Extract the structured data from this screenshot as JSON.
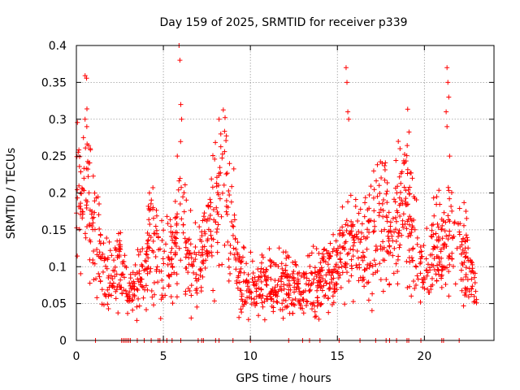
{
  "chart_data": {
    "type": "scatter",
    "title": "Day 159 of 2025, SRMTID for receiver p339",
    "xlabel": "GPS time / hours",
    "ylabel": "SRMTID / TECUs",
    "xlim": [
      0,
      24
    ],
    "ylim": [
      0,
      0.4
    ],
    "x_ticks": [
      0,
      5,
      10,
      15,
      20
    ],
    "x_tick_labels": [
      "0",
      "5",
      "10",
      "15",
      "20"
    ],
    "y_ticks": [
      0,
      0.05,
      0.1,
      0.15,
      0.2,
      0.25,
      0.3,
      0.35,
      0.4
    ],
    "y_tick_labels": [
      "0",
      "0.05",
      "0.1",
      "0.15",
      "0.2",
      "0.25",
      "0.3",
      "0.35",
      "0.4"
    ],
    "grid": true,
    "marker": "+",
    "color": "#ff0000",
    "trend": {
      "x": [
        0,
        0.3,
        0.5,
        0.7,
        1.0,
        1.5,
        2.0,
        2.5,
        3.0,
        3.5,
        4.0,
        4.3,
        4.8,
        5.3,
        5.7,
        6.0,
        6.3,
        6.7,
        7.0,
        7.5,
        8.0,
        8.5,
        9.0,
        9.3,
        9.7,
        10.0,
        10.5,
        11.0,
        11.5,
        12.0,
        12.5,
        13.0,
        13.5,
        14.0,
        14.5,
        15.0,
        15.5,
        16.0,
        16.5,
        17.0,
        17.5,
        18.0,
        18.5,
        19.0,
        19.5,
        20.0,
        20.5,
        21.0,
        21.5,
        22.0,
        22.5,
        23.0
      ],
      "y": [
        0.2,
        0.17,
        0.24,
        0.22,
        0.14,
        0.11,
        0.08,
        0.1,
        0.07,
        0.08,
        0.09,
        0.15,
        0.1,
        0.12,
        0.14,
        0.18,
        0.12,
        0.09,
        0.1,
        0.14,
        0.17,
        0.2,
        0.15,
        0.09,
        0.08,
        0.07,
        0.07,
        0.08,
        0.07,
        0.08,
        0.07,
        0.07,
        0.07,
        0.08,
        0.09,
        0.1,
        0.12,
        0.14,
        0.12,
        0.14,
        0.18,
        0.15,
        0.16,
        0.19,
        0.12,
        0.09,
        0.12,
        0.13,
        0.14,
        0.12,
        0.1,
        0.06
      ]
    },
    "spikes": [
      {
        "x": 0.5,
        "y": 0.3
      },
      {
        "x": 0.6,
        "y": 0.29
      },
      {
        "x": 0.8,
        "y": 0.26
      },
      {
        "x": 4.2,
        "y": 0.2
      },
      {
        "x": 5.9,
        "y": 0.4
      },
      {
        "x": 5.95,
        "y": 0.38
      },
      {
        "x": 6.0,
        "y": 0.32
      },
      {
        "x": 6.05,
        "y": 0.3
      },
      {
        "x": 5.8,
        "y": 0.25
      },
      {
        "x": 8.2,
        "y": 0.3
      },
      {
        "x": 8.3,
        "y": 0.28
      },
      {
        "x": 8.8,
        "y": 0.24
      },
      {
        "x": 15.5,
        "y": 0.37
      },
      {
        "x": 15.55,
        "y": 0.35
      },
      {
        "x": 15.6,
        "y": 0.31
      },
      {
        "x": 15.65,
        "y": 0.3
      },
      {
        "x": 18.5,
        "y": 0.27
      },
      {
        "x": 18.6,
        "y": 0.26
      },
      {
        "x": 21.3,
        "y": 0.37
      },
      {
        "x": 21.35,
        "y": 0.35
      },
      {
        "x": 21.4,
        "y": 0.33
      },
      {
        "x": 21.25,
        "y": 0.31
      },
      {
        "x": 21.3,
        "y": 0.29
      },
      {
        "x": 21.45,
        "y": 0.25
      }
    ],
    "zero_points_x": [
      1.1,
      2.6,
      2.7,
      2.8,
      2.9,
      3.0,
      3.1,
      3.5,
      3.9,
      4.3,
      4.7,
      4.8,
      5.0,
      5.2,
      5.5,
      6.0,
      7.0,
      7.2,
      7.3,
      8.0,
      8.2,
      9.0,
      10.0,
      12.2,
      13.0,
      13.4,
      14.0,
      15.1,
      16.3,
      17.2,
      17.8,
      18.0,
      18.4,
      19.0,
      19.1,
      19.8,
      21.0,
      21.1,
      22.0
    ]
  }
}
